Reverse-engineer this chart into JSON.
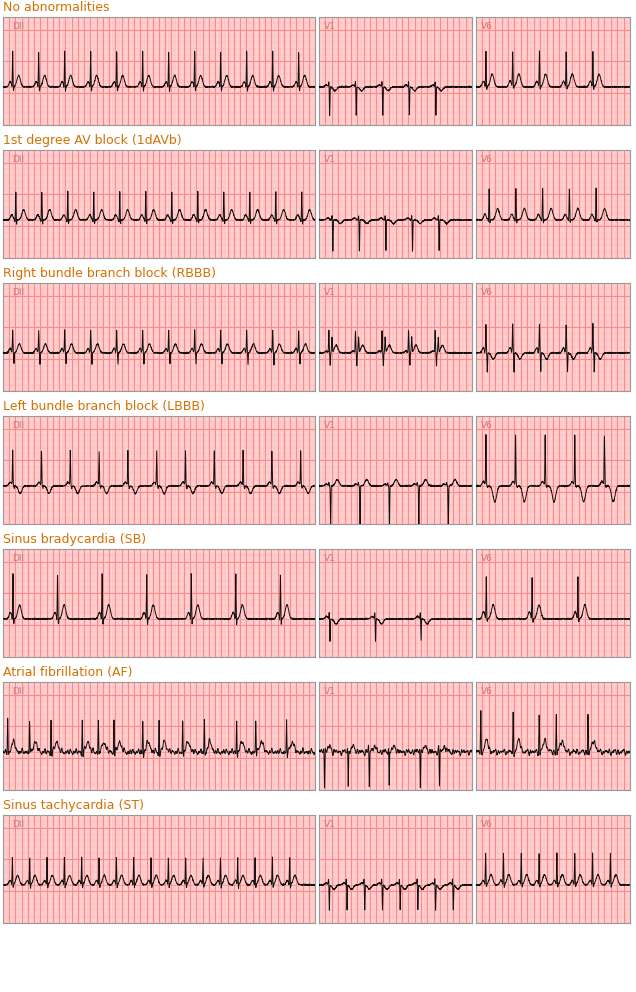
{
  "categories": [
    "No abnormalities",
    "1st degree AV block (1dAVb)",
    "Right bundle branch block (RBBB)",
    "Left bundle branch block (LBBB)",
    "Sinus bradycardia (SB)",
    "Atrial fibrillation (AF)",
    "Sinus tachycardia (ST)"
  ],
  "conditions": [
    "normal",
    "1dAVb",
    "RBBB",
    "LBBB",
    "SB",
    "AF",
    "ST"
  ],
  "lead_labels": [
    "DII",
    "V1",
    "V6"
  ],
  "title_color": "#d47000",
  "ecg_bg_color": "#ffd8d8",
  "ecg_major_grid_color": "#ff8888",
  "ecg_minor_grid_color": "#ffb8b8",
  "ecg_line_color": "#111111",
  "border_color": "#999999",
  "fig_bg_color": "#ffffff",
  "lead_label_color": "#cc7777",
  "title_fontsize": 9.0,
  "label_fontsize": 6.5
}
